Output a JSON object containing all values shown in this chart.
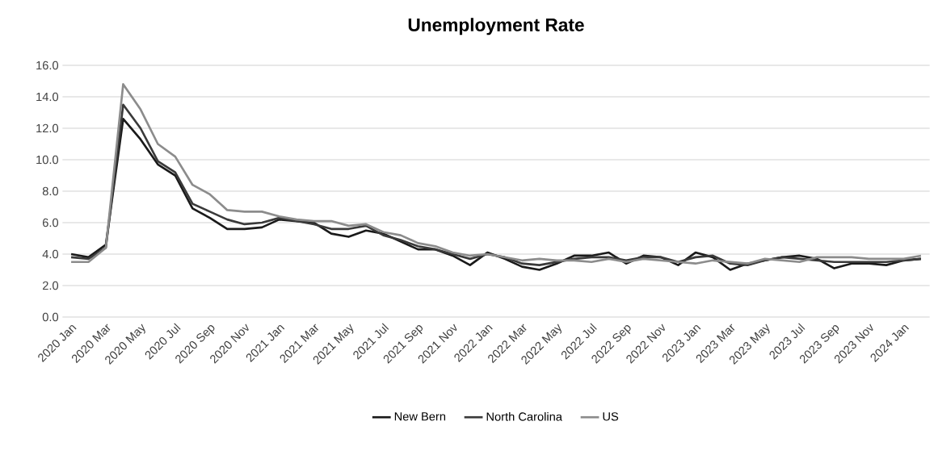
{
  "chart_data": {
    "type": "line",
    "title": "Unemployment Rate",
    "categories": [
      "2020 Jan",
      null,
      "2020 Mar",
      null,
      "2020 May",
      null,
      "2020 Jul",
      null,
      "2020 Sep",
      null,
      "2020 Nov",
      null,
      "2021 Jan",
      null,
      "2021 Mar",
      null,
      "2021 May",
      null,
      "2021 Jul",
      null,
      "2021 Sep",
      null,
      "2021 Nov",
      null,
      "2022 Jan",
      null,
      "2022 Mar",
      null,
      "2022 May",
      null,
      "2022 Jul",
      null,
      "2022 Sep",
      null,
      "2022 Nov",
      null,
      "2023 Jan",
      null,
      "2023 Mar",
      null,
      "2023 May",
      null,
      "2023 Jul",
      null,
      "2023 Sep",
      null,
      "2023 Nov",
      null,
      "2024 Jan",
      null
    ],
    "series": [
      {
        "name": "New Bern",
        "color": "#1a1a1a",
        "values": [
          4.0,
          3.8,
          4.6,
          12.6,
          11.3,
          9.7,
          9.0,
          6.9,
          6.3,
          5.6,
          5.6,
          5.7,
          6.2,
          6.1,
          6.0,
          5.3,
          5.1,
          5.5,
          5.3,
          4.8,
          4.3,
          4.3,
          3.9,
          3.3,
          4.1,
          3.7,
          3.2,
          3.0,
          3.4,
          3.9,
          3.9,
          4.1,
          3.4,
          3.9,
          3.8,
          3.3,
          4.1,
          3.8,
          3.0,
          3.4,
          3.6,
          3.8,
          3.9,
          3.7,
          3.1,
          3.4,
          3.4,
          3.3,
          3.6,
          3.7
        ]
      },
      {
        "name": "North Carolina",
        "color": "#3a3a3a",
        "values": [
          3.8,
          3.7,
          4.4,
          13.5,
          12.0,
          9.9,
          9.2,
          7.2,
          6.7,
          6.2,
          5.9,
          6.0,
          6.3,
          6.1,
          5.9,
          5.6,
          5.6,
          5.8,
          5.2,
          4.9,
          4.5,
          4.3,
          4.0,
          3.7,
          4.0,
          3.8,
          3.4,
          3.3,
          3.5,
          3.7,
          3.8,
          3.8,
          3.6,
          3.8,
          3.8,
          3.5,
          3.8,
          3.9,
          3.4,
          3.3,
          3.6,
          3.8,
          3.7,
          3.6,
          3.5,
          3.5,
          3.5,
          3.5,
          3.6,
          3.7
        ]
      },
      {
        "name": "US",
        "color": "#8c8c8c",
        "values": [
          3.5,
          3.5,
          4.4,
          14.8,
          13.2,
          11.0,
          10.2,
          8.4,
          7.8,
          6.8,
          6.7,
          6.7,
          6.4,
          6.2,
          6.1,
          6.1,
          5.8,
          5.9,
          5.4,
          5.2,
          4.7,
          4.5,
          4.1,
          3.9,
          4.0,
          3.8,
          3.6,
          3.7,
          3.6,
          3.6,
          3.5,
          3.7,
          3.5,
          3.7,
          3.6,
          3.5,
          3.4,
          3.6,
          3.5,
          3.4,
          3.7,
          3.6,
          3.5,
          3.8,
          3.8,
          3.8,
          3.7,
          3.7,
          3.7,
          3.9
        ]
      }
    ],
    "ylim": [
      0,
      16
    ],
    "yticks": [
      {
        "value": 0,
        "label": "0.0"
      },
      {
        "value": 2,
        "label": "2.0"
      },
      {
        "value": 4,
        "label": "4.0"
      },
      {
        "value": 6,
        "label": "6.0"
      },
      {
        "value": 8,
        "label": "8.0"
      },
      {
        "value": 10,
        "label": "10.0"
      },
      {
        "value": 12,
        "label": "12.0"
      },
      {
        "value": 14,
        "label": "14.0"
      },
      {
        "value": 16,
        "label": "16.0"
      }
    ],
    "grid": "y",
    "legend": "bottom",
    "marker": "none",
    "line_style": "solid"
  }
}
